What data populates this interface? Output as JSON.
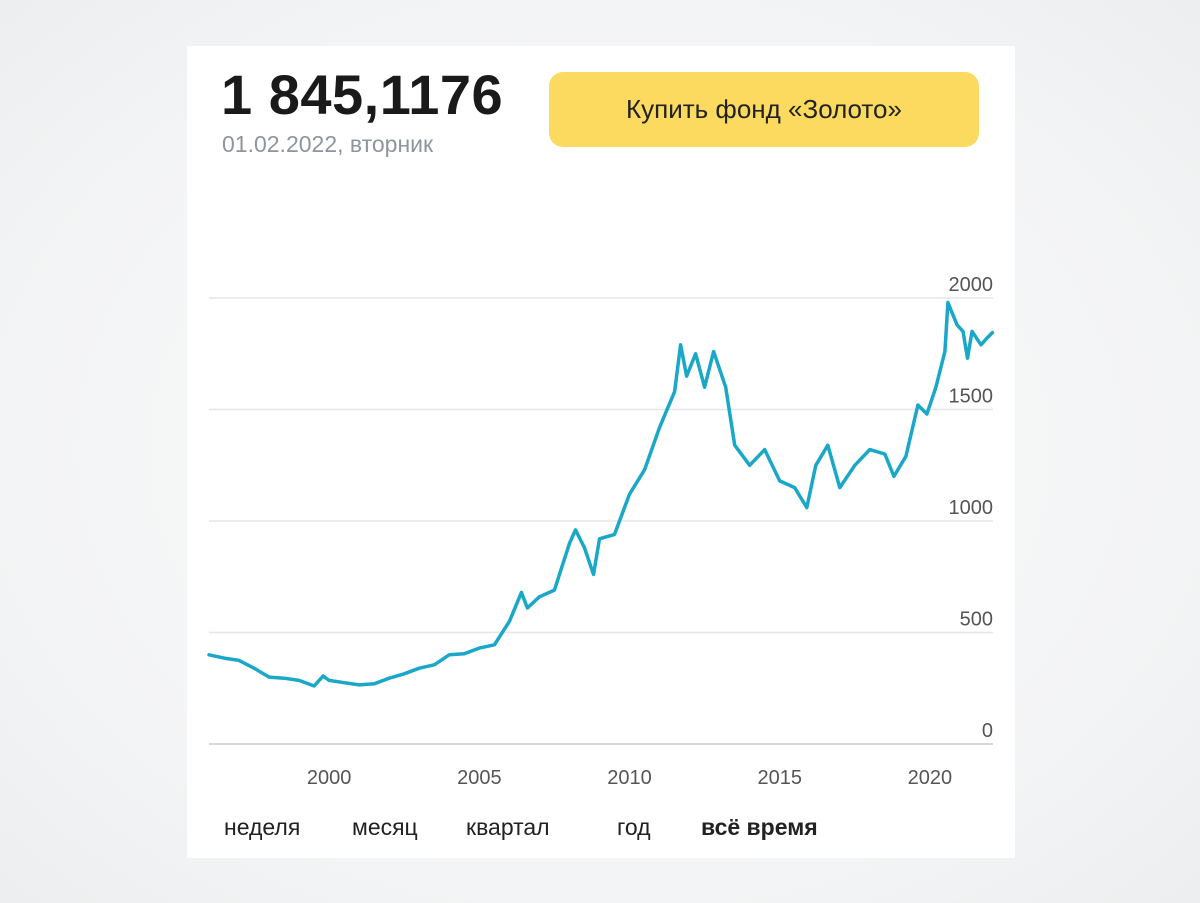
{
  "header": {
    "price": "1 845,1176",
    "date": "01.02.2022, вторник"
  },
  "buy_button": {
    "label": "Купить фонд «Золото»"
  },
  "colors": {
    "line": "#1aa7c8",
    "grid": "#e3e6ea",
    "button": "#fbda5f",
    "tick_text": "#555555"
  },
  "tabs": [
    {
      "label": "неделя",
      "active": false
    },
    {
      "label": "месяц",
      "active": false
    },
    {
      "label": "квартал",
      "active": false
    },
    {
      "label": "год",
      "active": false
    },
    {
      "label": "всё время",
      "active": true
    }
  ],
  "chart_data": {
    "type": "line",
    "y_ticks": [
      0,
      500,
      1000,
      1500,
      2000
    ],
    "x_ticks": [
      2000,
      2005,
      2010,
      2015,
      2020
    ],
    "ylim": [
      0,
      2000
    ],
    "xlim": [
      1996.0,
      2022.1
    ],
    "grid": true,
    "series": [
      {
        "values": [
          [
            1996.0,
            400
          ],
          [
            1996.5,
            385
          ],
          [
            1997.0,
            375
          ],
          [
            1997.5,
            340
          ],
          [
            1998.0,
            300
          ],
          [
            1998.5,
            295
          ],
          [
            1999.0,
            285
          ],
          [
            1999.5,
            260
          ],
          [
            1999.8,
            305
          ],
          [
            2000.0,
            285
          ],
          [
            2000.5,
            275
          ],
          [
            2001.0,
            265
          ],
          [
            2001.5,
            270
          ],
          [
            2002.0,
            295
          ],
          [
            2002.5,
            315
          ],
          [
            2003.0,
            340
          ],
          [
            2003.5,
            355
          ],
          [
            2004.0,
            400
          ],
          [
            2004.5,
            405
          ],
          [
            2005.0,
            430
          ],
          [
            2005.5,
            445
          ],
          [
            2006.0,
            550
          ],
          [
            2006.4,
            680
          ],
          [
            2006.6,
            610
          ],
          [
            2007.0,
            660
          ],
          [
            2007.5,
            690
          ],
          [
            2008.0,
            900
          ],
          [
            2008.2,
            960
          ],
          [
            2008.5,
            880
          ],
          [
            2008.8,
            760
          ],
          [
            2009.0,
            920
          ],
          [
            2009.5,
            940
          ],
          [
            2010.0,
            1120
          ],
          [
            2010.5,
            1230
          ],
          [
            2011.0,
            1420
          ],
          [
            2011.5,
            1580
          ],
          [
            2011.7,
            1790
          ],
          [
            2011.9,
            1650
          ],
          [
            2012.2,
            1750
          ],
          [
            2012.5,
            1600
          ],
          [
            2012.8,
            1760
          ],
          [
            2013.2,
            1600
          ],
          [
            2013.5,
            1340
          ],
          [
            2014.0,
            1250
          ],
          [
            2014.5,
            1320
          ],
          [
            2015.0,
            1180
          ],
          [
            2015.5,
            1150
          ],
          [
            2015.9,
            1060
          ],
          [
            2016.2,
            1250
          ],
          [
            2016.6,
            1340
          ],
          [
            2017.0,
            1150
          ],
          [
            2017.5,
            1250
          ],
          [
            2018.0,
            1320
          ],
          [
            2018.5,
            1300
          ],
          [
            2018.8,
            1200
          ],
          [
            2019.2,
            1290
          ],
          [
            2019.6,
            1520
          ],
          [
            2019.9,
            1480
          ],
          [
            2020.2,
            1600
          ],
          [
            2020.5,
            1760
          ],
          [
            2020.6,
            1980
          ],
          [
            2020.9,
            1880
          ],
          [
            2021.1,
            1850
          ],
          [
            2021.25,
            1730
          ],
          [
            2021.4,
            1850
          ],
          [
            2021.7,
            1790
          ],
          [
            2021.9,
            1820
          ],
          [
            2022.08,
            1845
          ]
        ]
      }
    ]
  }
}
